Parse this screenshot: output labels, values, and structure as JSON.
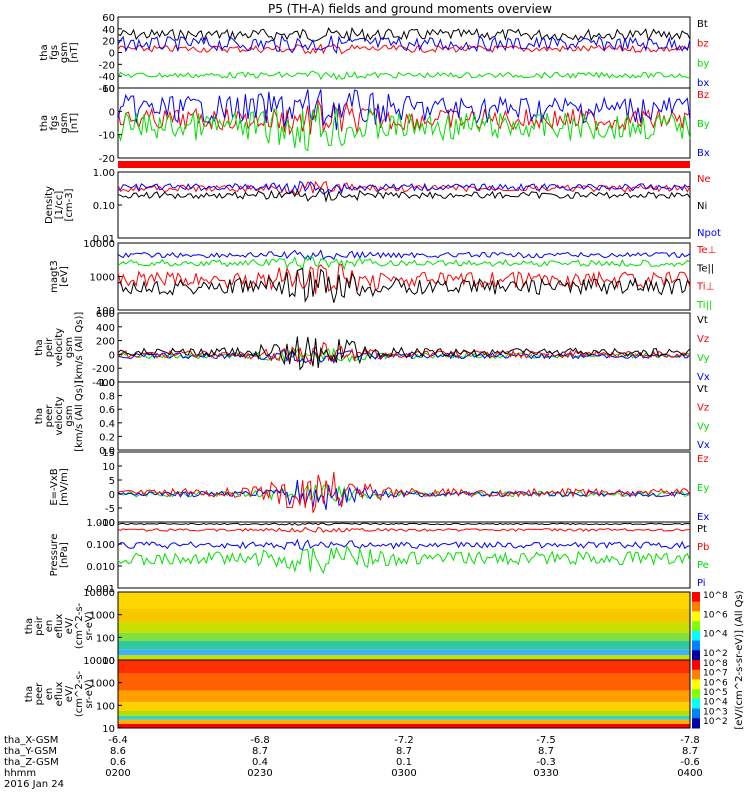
{
  "title": "P5 (TH-A) fields and ground moments overview",
  "colors": {
    "black": "#000000",
    "red": "#ff0000",
    "green": "#00e000",
    "blue": "#0000ff"
  },
  "panels": [
    {
      "id": "fgs-total",
      "ylabel": [
        "tha",
        "fgs",
        "gsm",
        "[nT]"
      ],
      "yticks": [
        "60",
        "40",
        "20",
        "0",
        "-20",
        "-40",
        "-60"
      ],
      "legend": [
        {
          "text": "Bt",
          "color": "black"
        },
        {
          "text": "bz",
          "color": "red"
        },
        {
          "text": "by",
          "color": "green"
        },
        {
          "text": "bx",
          "color": "blue"
        }
      ]
    },
    {
      "id": "fgs-comp",
      "ylabel": [
        "tha",
        "fgs",
        "gsm",
        "[nT]"
      ],
      "yticks": [
        "10",
        "0",
        "-10",
        "-20"
      ],
      "legend": [
        {
          "text": "Bz",
          "color": "red"
        },
        {
          "text": "By",
          "color": "green"
        },
        {
          "text": "Bx",
          "color": "blue"
        }
      ]
    },
    {
      "id": "density",
      "ylabel": [
        "Density",
        "[1/cc]",
        "[cm-3]"
      ],
      "yticks": [
        "1.00",
        "0.10",
        "0.01"
      ],
      "legend": [
        {
          "text": "Ne",
          "color": "red"
        },
        {
          "text": "Ni",
          "color": "black"
        },
        {
          "text": "Npot",
          "color": "blue"
        }
      ]
    },
    {
      "id": "temp",
      "ylabel": [
        "magt3",
        "[eV]"
      ],
      "yticks": [
        "10000",
        "1000",
        "100"
      ],
      "legend": [
        {
          "text": "Te⊥",
          "color": "red"
        },
        {
          "text": "Te||",
          "color": "black"
        },
        {
          "text": "Ti⊥",
          "color": "red"
        },
        {
          "text": "Ti||",
          "color": "green"
        }
      ]
    },
    {
      "id": "peir-vel",
      "ylabel": [
        "tha",
        "peir",
        "velocity",
        "gsm",
        "[km/s (All Qs)]"
      ],
      "yticks": [
        "600",
        "400",
        "200",
        "0",
        "-200",
        "-400"
      ],
      "legend": [
        {
          "text": "Vt",
          "color": "black"
        },
        {
          "text": "Vz",
          "color": "red"
        },
        {
          "text": "Vy",
          "color": "green"
        },
        {
          "text": "Vx",
          "color": "blue"
        }
      ]
    },
    {
      "id": "peer-vel",
      "ylabel": [
        "tha",
        "peer",
        "velocity",
        "gsm",
        "[km/s (All Qs)]"
      ],
      "yticks": [
        "1.0",
        "0.8",
        "0.6",
        "0.4",
        "0.2",
        "0.0"
      ],
      "legend": [
        {
          "text": "Vt",
          "color": "black"
        },
        {
          "text": "Vz",
          "color": "red"
        },
        {
          "text": "Vy",
          "color": "green"
        },
        {
          "text": "Vx",
          "color": "blue"
        }
      ]
    },
    {
      "id": "efield",
      "ylabel": [
        "E=-VxB",
        "[mV/m]"
      ],
      "yticks": [
        "15",
        "10",
        "5",
        "0",
        "-5",
        "-10"
      ],
      "legend": [
        {
          "text": "Ez",
          "color": "red"
        },
        {
          "text": "Ey",
          "color": "green"
        },
        {
          "text": "Ex",
          "color": "blue"
        }
      ]
    },
    {
      "id": "pressure",
      "ylabel": [
        "Pressure",
        "[nPa]"
      ],
      "yticks": [
        "1.000",
        "0.100",
        "0.010",
        "0.001"
      ],
      "legend": [
        {
          "text": "Pt",
          "color": "black"
        },
        {
          "text": "Pb",
          "color": "red"
        },
        {
          "text": "Pe",
          "color": "green"
        },
        {
          "text": "Pi",
          "color": "blue"
        }
      ]
    },
    {
      "id": "peir-eflux",
      "ylabel": [
        "tha",
        "peir",
        "en",
        "eflux",
        "eV/",
        "(cm^2-s-",
        "sr-eV)"
      ],
      "yticks": [
        "10000",
        "1000",
        "100",
        "10"
      ],
      "legend": []
    },
    {
      "id": "peer-eflux",
      "ylabel": [
        "tha",
        "peer",
        "en",
        "eflux",
        "eV/",
        "(cm^2-s-",
        "sr-eV)"
      ],
      "yticks": [
        "10000",
        "1000",
        "100",
        "10"
      ],
      "legend": []
    }
  ],
  "colorbar": {
    "label": "[eV/(cm^2-s-sr-eV)] (All Qs)",
    "ticks_top": [
      "10^8",
      "10^6",
      "10^4",
      "10^2"
    ],
    "ticks_bottom": [
      "10^8",
      "10^7",
      "10^6",
      "10^5",
      "10^4",
      "10^3",
      "10^2"
    ]
  },
  "xaxis": {
    "rows": [
      {
        "label": "tha_X-GSM",
        "values": [
          "-6.4",
          "-6.8",
          "-7.2",
          "-7.5",
          "-7.8"
        ]
      },
      {
        "label": "tha_Y-GSM",
        "values": [
          "8.6",
          "8.7",
          "8.7",
          "8.7",
          "8.7"
        ]
      },
      {
        "label": "tha_Z-GSM",
        "values": [
          "0.6",
          "0.4",
          "0.1",
          "-0.3",
          "-0.6"
        ]
      },
      {
        "label": "hhmm",
        "values": [
          "0200",
          "0230",
          "0300",
          "0330",
          "0400"
        ]
      }
    ],
    "date": "2016 Jan 24"
  }
}
